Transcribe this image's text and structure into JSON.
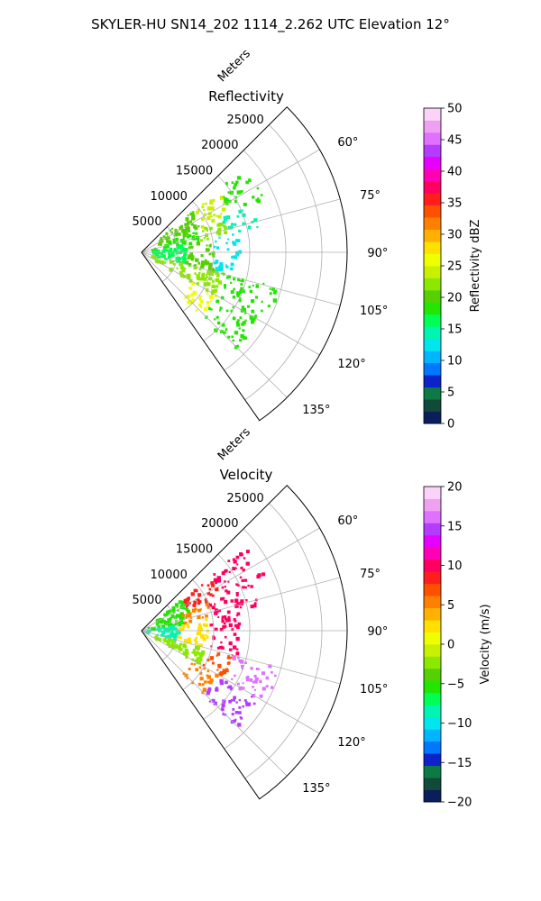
{
  "figure": {
    "title": "SKYLER-HU  SN14_202  1114_2.262 UTC Elevation 12°"
  },
  "chart_data": [
    {
      "type": "heatmap",
      "projection": "polar-sector",
      "title": "Reflectivity",
      "radial_axis_label": "Meters",
      "radial_range": [
        0,
        28500
      ],
      "radial_tick_values": [
        5000,
        10000,
        15000,
        20000,
        25000
      ],
      "radial_tick_labels": [
        "5000",
        "10000",
        "15000",
        "20000",
        "25000"
      ],
      "azimuth_range_deg": [
        45,
        145
      ],
      "azimuth_tick_values": [
        60,
        75,
        90,
        105,
        120,
        135
      ],
      "azimuth_tick_labels": [
        "60°",
        "75°",
        "90°",
        "105°",
        "120°",
        "135°"
      ],
      "grid": true,
      "colorbar": {
        "label": "Reflectivity dBZ",
        "range": [
          0,
          50
        ],
        "tick_values": [
          0,
          5,
          10,
          15,
          20,
          25,
          30,
          35,
          40,
          45,
          50
        ],
        "tick_labels": [
          "0",
          "5",
          "10",
          "15",
          "20",
          "25",
          "30",
          "35",
          "40",
          "45",
          "50"
        ],
        "colors": [
          "#0a1e5c",
          "#124a3a",
          "#0d7a45",
          "#0b23c8",
          "#0077ff",
          "#00b4ff",
          "#00e6ee",
          "#00f5b0",
          "#00ff55",
          "#22e600",
          "#55d000",
          "#8ce800",
          "#c8f000",
          "#f0ff00",
          "#ffe000",
          "#ffb000",
          "#ff8000",
          "#ff5000",
          "#ff1e1e",
          "#ff0060",
          "#ff00b4",
          "#e600ff",
          "#b43cff",
          "#e070ff",
          "#f0a0f0",
          "#fad2fa"
        ]
      },
      "echo_regions": [
        {
          "az": [
            50,
            66
          ],
          "r": [
            0,
            9000
          ],
          "value": 20
        },
        {
          "az": [
            50,
            66
          ],
          "r": [
            9000,
            13500
          ],
          "value": 24
        },
        {
          "az": [
            50,
            66
          ],
          "r": [
            13500,
            18500
          ],
          "value": 18
        },
        {
          "az": [
            66,
            78
          ],
          "r": [
            0,
            8000
          ],
          "value": 19
        },
        {
          "az": [
            66,
            78
          ],
          "r": [
            8000,
            12000
          ],
          "value": 23
        },
        {
          "az": [
            66,
            78
          ],
          "r": [
            12000,
            16500
          ],
          "value": 15
        },
        {
          "az": [
            78,
            104
          ],
          "r": [
            0,
            6000
          ],
          "value": 17
        },
        {
          "az": [
            78,
            104
          ],
          "r": [
            6000,
            10000
          ],
          "value": 21
        },
        {
          "az": [
            78,
            104
          ],
          "r": [
            10000,
            13500
          ],
          "value": 13
        },
        {
          "az": [
            104,
            120
          ],
          "r": [
            0,
            11500
          ],
          "value": 22
        },
        {
          "az": [
            104,
            120
          ],
          "r": [
            11500,
            19500
          ],
          "value": 19
        },
        {
          "az": [
            120,
            137
          ],
          "r": [
            8000,
            12000
          ],
          "value": 25
        },
        {
          "az": [
            120,
            137
          ],
          "r": [
            12000,
            18500
          ],
          "value": 18
        }
      ]
    },
    {
      "type": "heatmap",
      "projection": "polar-sector",
      "title": "Velocity",
      "radial_axis_label": "Meters",
      "radial_range": [
        0,
        28500
      ],
      "radial_tick_values": [
        5000,
        10000,
        15000,
        20000,
        25000
      ],
      "radial_tick_labels": [
        "5000",
        "10000",
        "15000",
        "20000",
        "25000"
      ],
      "azimuth_range_deg": [
        45,
        145
      ],
      "azimuth_tick_values": [
        60,
        75,
        90,
        105,
        120,
        135
      ],
      "azimuth_tick_labels": [
        "60°",
        "75°",
        "90°",
        "105°",
        "120°",
        "135°"
      ],
      "grid": true,
      "colorbar": {
        "label": "Velocity (m/s)",
        "range": [
          -20,
          20
        ],
        "tick_values": [
          -20,
          -15,
          -10,
          -5,
          0,
          5,
          10,
          15,
          20
        ],
        "tick_labels": [
          "−20",
          "−15",
          "−10",
          "−5",
          "0",
          "5",
          "10",
          "15",
          "20"
        ],
        "colors": [
          "#0a1e5c",
          "#124a3a",
          "#0d7a45",
          "#0b23c8",
          "#0077ff",
          "#00b4ff",
          "#00e6ee",
          "#00f5b0",
          "#00ff55",
          "#22e600",
          "#55d000",
          "#8ce800",
          "#c8f000",
          "#f0ff00",
          "#ffe000",
          "#ffb000",
          "#ff8000",
          "#ff5000",
          "#ff1e1e",
          "#ff0060",
          "#ff00b4",
          "#e600ff",
          "#b43cff",
          "#e070ff",
          "#f0a0f0",
          "#fad2fa"
        ]
      },
      "echo_regions": [
        {
          "az": [
            50,
            66
          ],
          "r": [
            0,
            7000
          ],
          "value": -6
        },
        {
          "az": [
            50,
            66
          ],
          "r": [
            7000,
            12000
          ],
          "value": 8
        },
        {
          "az": [
            50,
            66
          ],
          "r": [
            12000,
            18500
          ],
          "value": 10
        },
        {
          "az": [
            66,
            78
          ],
          "r": [
            0,
            6000
          ],
          "value": -5
        },
        {
          "az": [
            66,
            78
          ],
          "r": [
            6000,
            10000
          ],
          "value": 5
        },
        {
          "az": [
            66,
            78
          ],
          "r": [
            10000,
            16500
          ],
          "value": 10
        },
        {
          "az": [
            78,
            104
          ],
          "r": [
            0,
            5000
          ],
          "value": -8
        },
        {
          "az": [
            78,
            104
          ],
          "r": [
            5000,
            9000
          ],
          "value": 2
        },
        {
          "az": [
            78,
            104
          ],
          "r": [
            9000,
            13500
          ],
          "value": 10
        },
        {
          "az": [
            104,
            120
          ],
          "r": [
            0,
            9000
          ],
          "value": -2
        },
        {
          "az": [
            104,
            120
          ],
          "r": [
            9000,
            13000
          ],
          "value": 7
        },
        {
          "az": [
            104,
            120
          ],
          "r": [
            13000,
            19500
          ],
          "value": 16
        },
        {
          "az": [
            120,
            137
          ],
          "r": [
            8000,
            12000
          ],
          "value": 6
        },
        {
          "az": [
            120,
            137
          ],
          "r": [
            12000,
            18500
          ],
          "value": 14
        }
      ]
    }
  ]
}
